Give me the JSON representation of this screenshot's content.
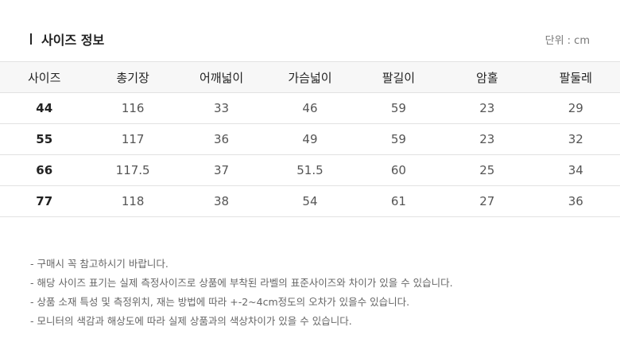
{
  "title": "사이즈 정보",
  "unit": "단위 : cm",
  "headers": [
    "사이즈",
    "총기장",
    "어깨넓이",
    "가슴넓이",
    "팔길이",
    "암홀",
    "팔둘레"
  ],
  "rows": [
    [
      "44",
      "116",
      "33",
      "46",
      "59",
      "23",
      "29"
    ],
    [
      "55",
      "117",
      "36",
      "49",
      "59",
      "23",
      "32"
    ],
    [
      "66",
      "117.5",
      "37",
      "51.5",
      "60",
      "25",
      "34"
    ],
    [
      "77",
      "118",
      "38",
      "54",
      "61",
      "27",
      "36"
    ]
  ],
  "notes": [
    "- 구매시 꼭 참고하시기 바랍니다.",
    "- 해당 사이즈 표기는 실제 측정사이즈로 상품에 부착된 라벨의 표준사이즈와 차이가 있을 수 있습니다.",
    "- 상품 소재 특성 및 측정위치, 재는 방법에 따라 +-2~4cm정도의 오차가 있을수 있습니다.",
    "- 모니터의 색감과 해상도에 따라 실제 상품과의 색상차이가 있을 수 있습니다."
  ]
}
